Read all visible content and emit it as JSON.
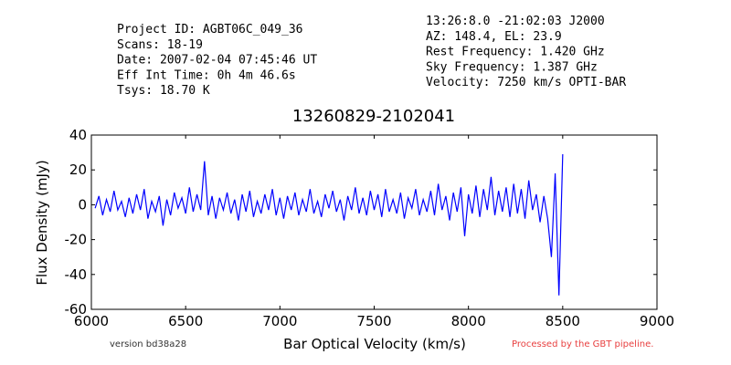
{
  "chart_data": {
    "type": "line",
    "title": "13260829-2102041",
    "header_left": [
      "Project ID: AGBT06C_049_36",
      "Scans: 18-19",
      "Date: 2007-02-04 07:45:46 UT",
      "Eff Int Time: 0h 4m 46.6s",
      "Tsys: 18.70 K"
    ],
    "header_right": [
      "13:26:8.0 -21:02:03 J2000",
      "AZ: 148.4, EL: 23.9",
      "Rest Frequency:   1.420 GHz",
      "Sky Frequency:    1.387 GHz",
      "Velocity: 7250 km/s OPTI-BAR"
    ],
    "xlabel": "Bar Optical Velocity (km/s)",
    "ylabel": "Flux Density (mJy)",
    "footer_left": "version bd38a28",
    "footer_right": "Processed by the GBT pipeline.",
    "xlim": [
      6000,
      9000
    ],
    "xticks": [
      6000,
      6500,
      7000,
      7500,
      8000,
      8500,
      9000
    ],
    "ylim": [
      -60,
      40
    ],
    "yticks": [
      -60,
      -40,
      -20,
      0,
      20,
      40
    ],
    "series": [
      {
        "color": "#0000ff",
        "x": [
          6020,
          6040,
          6060,
          6080,
          6100,
          6120,
          6140,
          6160,
          6180,
          6200,
          6220,
          6240,
          6260,
          6280,
          6300,
          6320,
          6340,
          6360,
          6380,
          6400,
          6420,
          6440,
          6460,
          6480,
          6500,
          6520,
          6540,
          6560,
          6580,
          6600,
          6620,
          6640,
          6660,
          6680,
          6700,
          6720,
          6740,
          6760,
          6780,
          6800,
          6820,
          6840,
          6860,
          6880,
          6900,
          6920,
          6940,
          6960,
          6980,
          7000,
          7020,
          7040,
          7060,
          7080,
          7100,
          7120,
          7140,
          7160,
          7180,
          7200,
          7220,
          7240,
          7260,
          7280,
          7300,
          7320,
          7340,
          7360,
          7380,
          7400,
          7420,
          7440,
          7460,
          7480,
          7500,
          7520,
          7540,
          7560,
          7580,
          7600,
          7620,
          7640,
          7660,
          7680,
          7700,
          7720,
          7740,
          7760,
          7780,
          7800,
          7820,
          7840,
          7860,
          7880,
          7900,
          7920,
          7940,
          7960,
          7980,
          8000,
          8020,
          8040,
          8060,
          8080,
          8100,
          8120,
          8140,
          8160,
          8180,
          8200,
          8220,
          8240,
          8260,
          8280,
          8300,
          8320,
          8340,
          8360,
          8380,
          8400,
          8420,
          8440,
          8460,
          8480,
          8500
        ],
        "values": [
          -2,
          5,
          -6,
          3,
          -4,
          8,
          -3,
          2,
          -7,
          4,
          -5,
          6,
          -3,
          9,
          -8,
          2,
          -4,
          5,
          -12,
          3,
          -6,
          7,
          -2,
          4,
          -5,
          10,
          -4,
          6,
          -3,
          25,
          -6,
          5,
          -8,
          4,
          -3,
          7,
          -5,
          3,
          -9,
          6,
          -4,
          8,
          -7,
          2,
          -5,
          6,
          -3,
          9,
          -6,
          4,
          -8,
          5,
          -3,
          7,
          -6,
          3,
          -4,
          9,
          -5,
          2,
          -7,
          6,
          -2,
          8,
          -4,
          3,
          -9,
          5,
          -3,
          10,
          -5,
          4,
          -6,
          8,
          -3,
          6,
          -7,
          9,
          -4,
          3,
          -5,
          7,
          -8,
          4,
          -2,
          9,
          -6,
          3,
          -4,
          8,
          -6,
          12,
          -3,
          5,
          -9,
          7,
          -4,
          10,
          -18,
          6,
          -5,
          11,
          -7,
          9,
          -3,
          16,
          -6,
          8,
          -4,
          10,
          -7,
          12,
          -5,
          9,
          -8,
          14,
          -3,
          6,
          -10,
          5,
          -8,
          -30,
          18,
          -52,
          29
        ]
      }
    ]
  }
}
